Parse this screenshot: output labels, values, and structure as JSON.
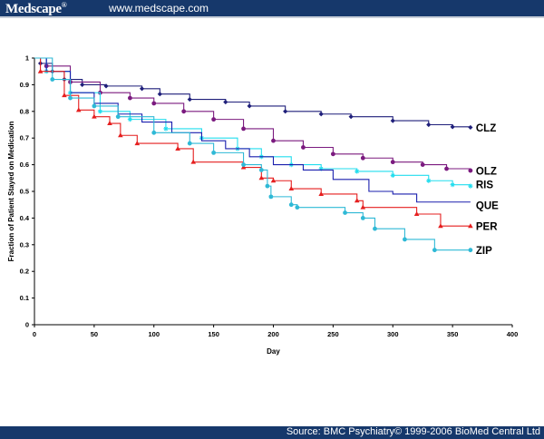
{
  "header": {
    "logo_text": "Medscape",
    "logo_mark": "®",
    "url": "www.medscape.com"
  },
  "footer": {
    "source": "Source: BMC Psychiatry© 1999-2006 BioMed Central Ltd"
  },
  "colors": {
    "bar_background": "#16386b",
    "CLZ": "#1f1f7a",
    "OLZ": "#7b1a7f",
    "RIS": "#22ddee",
    "QUE": "#1a1fae",
    "PER": "#e51f1f",
    "ZIP": "#2fb9d6"
  },
  "chart_data": {
    "type": "line",
    "title": "",
    "xlabel": "Day",
    "ylabel": "Fraction of Patient Stayed on Medication",
    "xlim": [
      0,
      400
    ],
    "ylim": [
      0,
      1
    ],
    "xticks": [
      0,
      50,
      100,
      150,
      200,
      250,
      300,
      350,
      400
    ],
    "yticks": [
      0,
      0.1,
      0.2,
      0.3,
      0.4,
      0.5,
      0.6,
      0.7,
      0.8,
      0.9,
      1
    ],
    "grid": false,
    "series": [
      {
        "name": "CLZ",
        "marker": "diamond",
        "points": [
          [
            0,
            1
          ],
          [
            5,
            0.98
          ],
          [
            15,
            0.95
          ],
          [
            25,
            0.92
          ],
          [
            40,
            0.9
          ],
          [
            60,
            0.895
          ],
          [
            90,
            0.885
          ],
          [
            105,
            0.865
          ],
          [
            130,
            0.845
          ],
          [
            160,
            0.835
          ],
          [
            180,
            0.82
          ],
          [
            210,
            0.8
          ],
          [
            240,
            0.79
          ],
          [
            265,
            0.78
          ],
          [
            300,
            0.765
          ],
          [
            330,
            0.75
          ],
          [
            350,
            0.742
          ],
          [
            365,
            0.74
          ]
        ]
      },
      {
        "name": "OLZ",
        "marker": "circle",
        "points": [
          [
            0,
            1
          ],
          [
            10,
            0.97
          ],
          [
            30,
            0.91
          ],
          [
            55,
            0.87
          ],
          [
            80,
            0.85
          ],
          [
            100,
            0.83
          ],
          [
            125,
            0.8
          ],
          [
            150,
            0.77
          ],
          [
            175,
            0.735
          ],
          [
            200,
            0.69
          ],
          [
            225,
            0.665
          ],
          [
            250,
            0.64
          ],
          [
            275,
            0.625
          ],
          [
            300,
            0.61
          ],
          [
            325,
            0.6
          ],
          [
            345,
            0.585
          ],
          [
            365,
            0.578
          ]
        ]
      },
      {
        "name": "RIS",
        "marker": "star",
        "points": [
          [
            0,
            1
          ],
          [
            10,
            0.95
          ],
          [
            30,
            0.87
          ],
          [
            55,
            0.8
          ],
          [
            80,
            0.77
          ],
          [
            110,
            0.735
          ],
          [
            140,
            0.7
          ],
          [
            170,
            0.66
          ],
          [
            190,
            0.63
          ],
          [
            215,
            0.6
          ],
          [
            240,
            0.585
          ],
          [
            270,
            0.575
          ],
          [
            300,
            0.56
          ],
          [
            330,
            0.54
          ],
          [
            350,
            0.525
          ],
          [
            365,
            0.52
          ]
        ]
      },
      {
        "name": "QUE",
        "marker": "none",
        "points": [
          [
            0,
            1
          ],
          [
            10,
            0.95
          ],
          [
            30,
            0.87
          ],
          [
            50,
            0.83
          ],
          [
            70,
            0.79
          ],
          [
            90,
            0.76
          ],
          [
            115,
            0.72
          ],
          [
            140,
            0.69
          ],
          [
            160,
            0.66
          ],
          [
            180,
            0.63
          ],
          [
            200,
            0.6
          ],
          [
            225,
            0.58
          ],
          [
            250,
            0.545
          ],
          [
            280,
            0.5
          ],
          [
            300,
            0.49
          ],
          [
            320,
            0.46
          ],
          [
            345,
            0.46
          ],
          [
            365,
            0.46
          ]
        ]
      },
      {
        "name": "PER",
        "marker": "triangle",
        "points": [
          [
            0,
            1
          ],
          [
            5,
            0.95
          ],
          [
            25,
            0.86
          ],
          [
            37,
            0.805
          ],
          [
            50,
            0.78
          ],
          [
            63,
            0.755
          ],
          [
            72,
            0.71
          ],
          [
            86,
            0.68
          ],
          [
            120,
            0.66
          ],
          [
            133,
            0.61
          ],
          [
            175,
            0.59
          ],
          [
            190,
            0.55
          ],
          [
            200,
            0.54
          ],
          [
            215,
            0.51
          ],
          [
            240,
            0.49
          ],
          [
            270,
            0.465
          ],
          [
            275,
            0.44
          ],
          [
            320,
            0.415
          ],
          [
            340,
            0.37
          ],
          [
            365,
            0.37
          ]
        ]
      },
      {
        "name": "ZIP",
        "marker": "circle",
        "points": [
          [
            0,
            1
          ],
          [
            15,
            0.92
          ],
          [
            30,
            0.85
          ],
          [
            50,
            0.82
          ],
          [
            70,
            0.78
          ],
          [
            100,
            0.72
          ],
          [
            130,
            0.68
          ],
          [
            150,
            0.645
          ],
          [
            175,
            0.6
          ],
          [
            190,
            0.58
          ],
          [
            195,
            0.52
          ],
          [
            198,
            0.48
          ],
          [
            215,
            0.45
          ],
          [
            220,
            0.44
          ],
          [
            260,
            0.42
          ],
          [
            275,
            0.4
          ],
          [
            285,
            0.36
          ],
          [
            310,
            0.32
          ],
          [
            335,
            0.28
          ],
          [
            365,
            0.28
          ]
        ]
      }
    ]
  }
}
